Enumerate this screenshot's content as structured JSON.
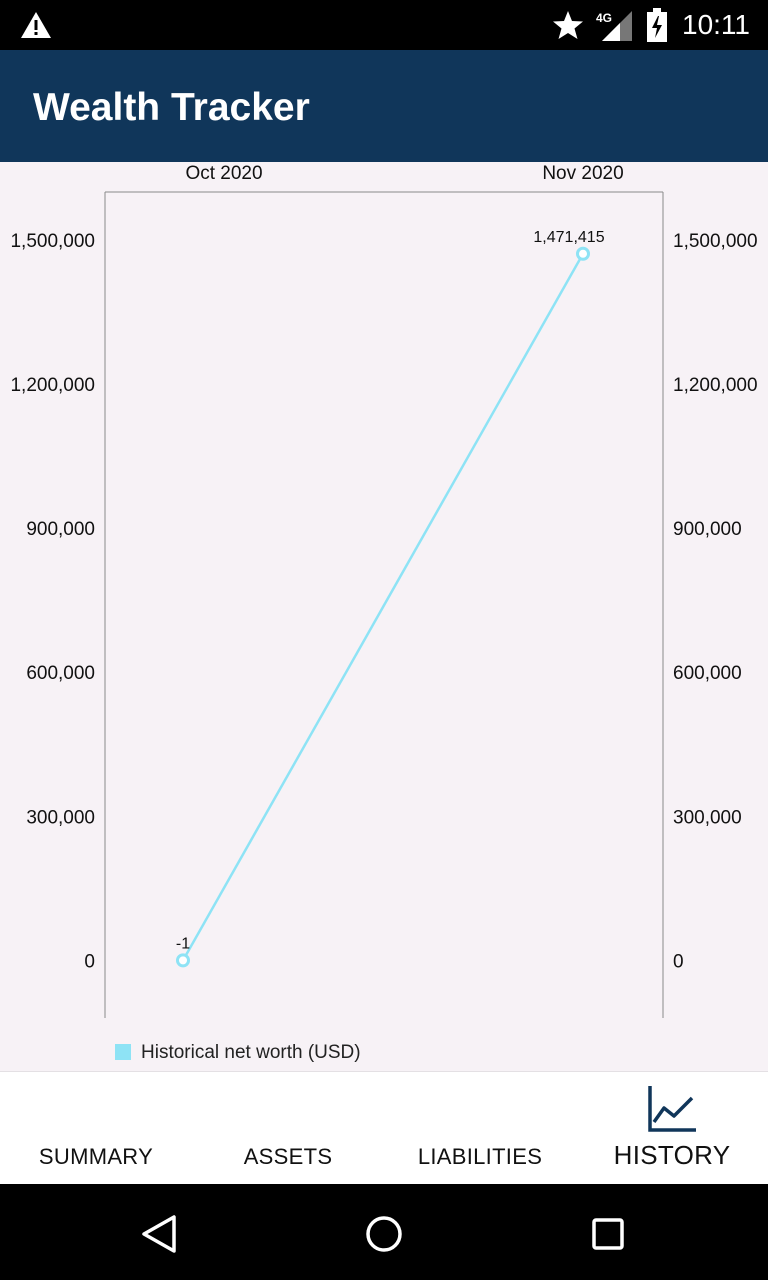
{
  "status_bar": {
    "time": "10:11",
    "network": "4G",
    "icons": [
      "alert-icon",
      "star-icon",
      "signal-icon",
      "battery-icon"
    ]
  },
  "app_bar": {
    "title": "Wealth Tracker"
  },
  "chart_data": {
    "type": "line",
    "title": "",
    "categories": [
      "Oct 2020",
      "Nov 2020"
    ],
    "series": [
      {
        "name": "Historical net worth (USD)",
        "values": [
          -1,
          1471415
        ],
        "labels": [
          "-1",
          "1,471,415"
        ],
        "color": "#8ee3f5"
      }
    ],
    "ylim": [
      -120000,
      1600000
    ],
    "y_ticks": [
      0,
      300000,
      600000,
      900000,
      1200000,
      1500000
    ],
    "y_tick_labels": [
      "0",
      "300,000",
      "600,000",
      "900,000",
      "1,200,000",
      "1,500,000"
    ],
    "y_axis_both_sides": true,
    "grid": false,
    "legend_position": "bottom-left"
  },
  "bottom_nav": {
    "tabs": [
      {
        "label": "SUMMARY",
        "active": false
      },
      {
        "label": "ASSETS",
        "active": false
      },
      {
        "label": "LIABILITIES",
        "active": false
      },
      {
        "label": "HISTORY",
        "active": true,
        "icon": "line-chart-icon"
      }
    ]
  },
  "colors": {
    "app_bar": "#10365a",
    "background": "#f7f2f6",
    "series_line": "#8ee3f5"
  }
}
